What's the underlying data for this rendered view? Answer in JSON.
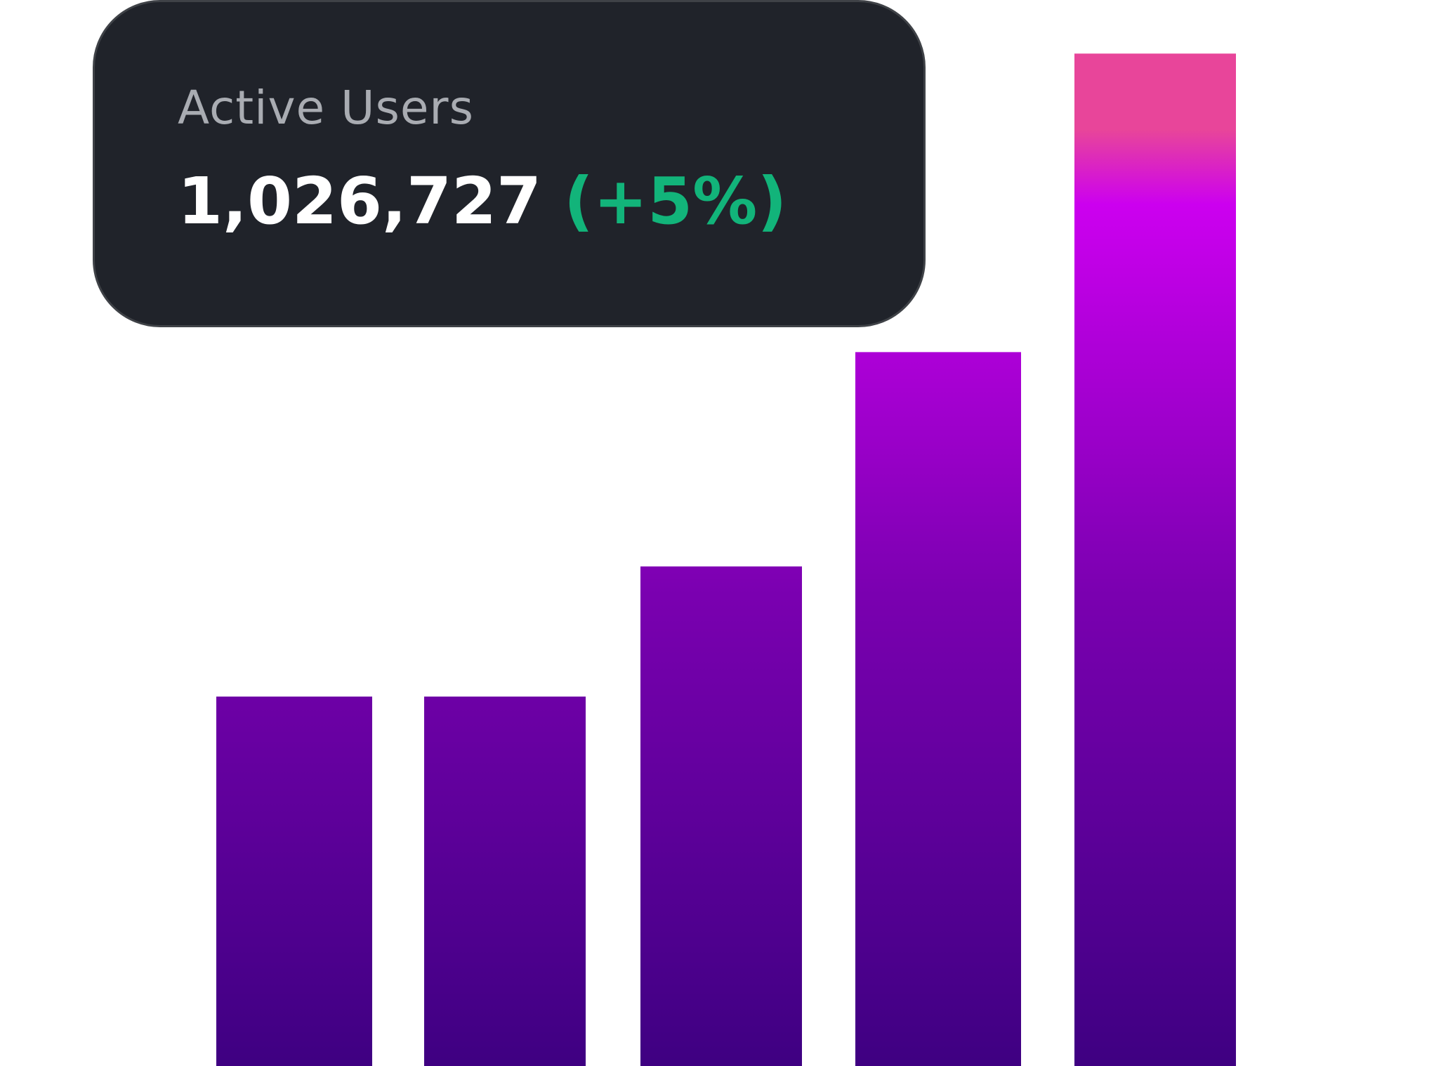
{
  "card": {
    "label": "Active Users",
    "value": "1,026,727",
    "change": "(+5%)",
    "change_color": "#12b47a"
  },
  "chart_data": {
    "type": "bar",
    "title": "",
    "xlabel": "",
    "ylabel": "",
    "values": [
      49,
      49,
      66,
      94,
      133
    ],
    "ylim": [
      0,
      140
    ],
    "grid": false,
    "legend": "none",
    "colors": {
      "bar_bottom": "#3f0082",
      "bar_top": "#cc00ef",
      "bar_tip": "#e8459a"
    }
  }
}
